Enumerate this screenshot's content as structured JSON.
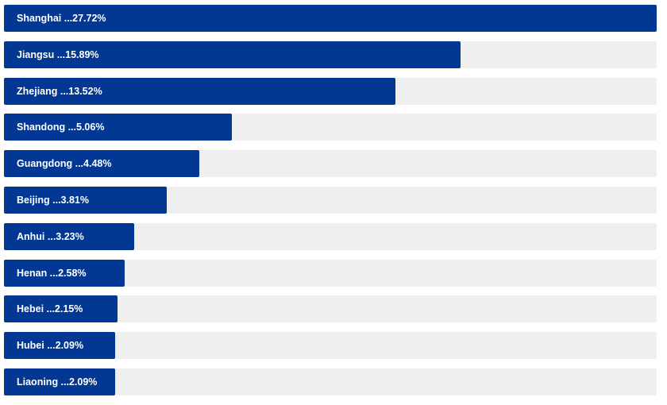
{
  "colors": {
    "bar": "#023894",
    "track": "#efefef",
    "label": "#ffffff"
  },
  "chart_data": {
    "type": "bar",
    "orientation": "horizontal",
    "categories": [
      "Shanghai",
      "Jiangsu",
      "Zhejiang",
      "Shandong",
      "Guangdong",
      "Beijing",
      "Anhui",
      "Henan",
      "Hebei",
      "Hubei",
      "Liaoning"
    ],
    "values": [
      27.72,
      15.89,
      13.52,
      5.06,
      4.48,
      3.81,
      3.23,
      2.58,
      2.15,
      2.09,
      2.09
    ],
    "labels": [
      "Shanghai ...27.72%",
      "Jiangsu ...15.89%",
      "Zhejiang ...13.52%",
      "Shandong ...5.06%",
      "Guangdong ...4.48%",
      "Beijing ...3.81%",
      "Anhui ...3.23%",
      "Henan ...2.58%",
      "Hebei ...2.15%",
      "Hubei ...2.09%",
      "Liaoning ...2.09%"
    ],
    "title": "",
    "xlabel": "",
    "ylabel": "",
    "grid": false
  }
}
